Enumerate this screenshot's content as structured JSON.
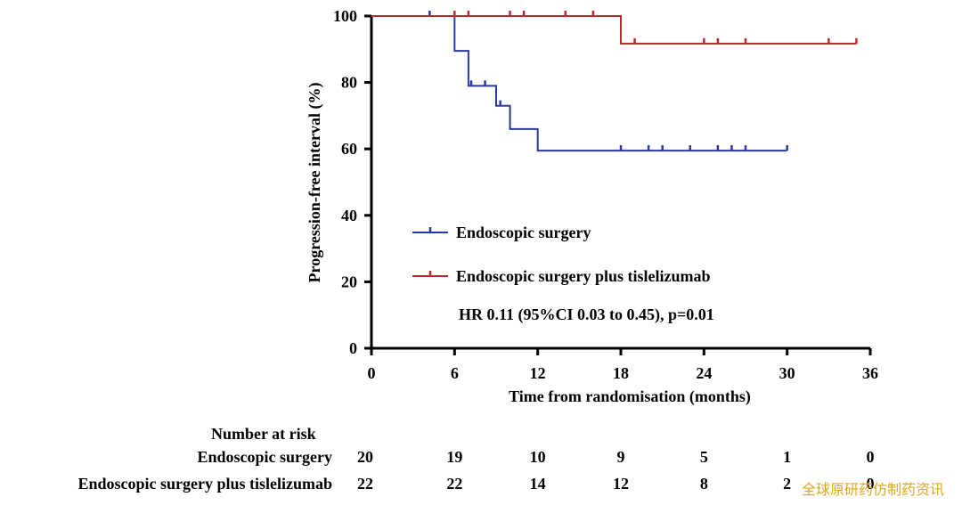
{
  "chart_data": {
    "type": "line",
    "subtype": "kaplan-meier",
    "xlabel": "Time from randomisation (months)",
    "ylabel": "Progression-free interval (%)",
    "xlim": [
      0,
      36
    ],
    "ylim": [
      0,
      100
    ],
    "xticks": [
      0,
      6,
      12,
      18,
      24,
      30,
      36
    ],
    "yticks": [
      0,
      20,
      40,
      60,
      80,
      100
    ],
    "grid": false,
    "legend_position": "center-left inside plot",
    "series": [
      {
        "name": "Endoscopic surgery",
        "color": "#2b3a9a",
        "steps": [
          [
            0,
            100
          ],
          [
            6,
            89.5
          ],
          [
            7,
            79
          ],
          [
            9,
            73
          ],
          [
            10,
            66
          ],
          [
            12,
            59.5
          ],
          [
            30,
            59.5
          ]
        ],
        "censor_times": [
          4.2,
          7.2,
          8.2,
          9.3,
          18,
          20,
          21,
          23,
          25,
          26,
          27,
          30
        ]
      },
      {
        "name": "Endoscopic surgery plus tislelizumab",
        "color": "#c0282d",
        "steps": [
          [
            0,
            100
          ],
          [
            18,
            91.7
          ],
          [
            35,
            91.7
          ]
        ],
        "censor_times": [
          6,
          7,
          10,
          11,
          14,
          16,
          19,
          24,
          25,
          27,
          33,
          35
        ]
      }
    ],
    "annotation": "HR 0.11 (95%CI 0.03 to 0.45), p=0.01"
  },
  "risk_table": {
    "title": "Number at risk",
    "times": [
      0,
      6,
      12,
      18,
      24,
      30,
      36
    ],
    "rows": [
      {
        "label": "Endoscopic surgery",
        "values": [
          "20",
          "19",
          "10",
          "9",
          "5",
          "1",
          "0"
        ]
      },
      {
        "label": "Endoscopic surgery plus tislelizumab",
        "values": [
          "22",
          "22",
          "14",
          "12",
          "8",
          "2",
          "0"
        ]
      }
    ]
  },
  "watermark": "全球原研药仿制药资讯"
}
